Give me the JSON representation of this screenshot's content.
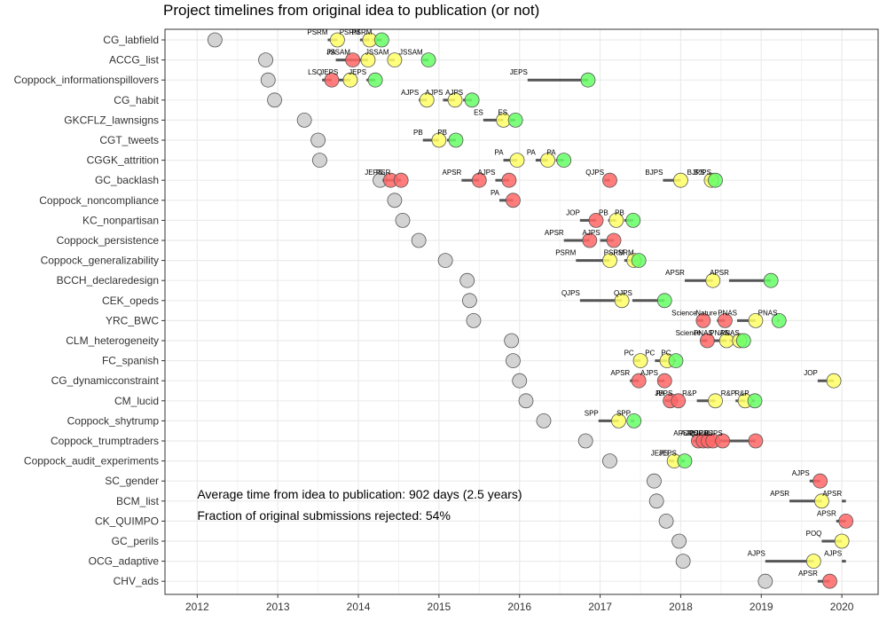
{
  "chart_data": {
    "type": "scatter",
    "title": "Project timelines from original idea to publication (or not)",
    "xlabel": "",
    "ylabel": "",
    "xlim": [
      2011.6,
      2020.45
    ],
    "x_ticks": [
      2012,
      2013,
      2014,
      2015,
      2016,
      2017,
      2018,
      2019,
      2020
    ],
    "grid": true,
    "legend": "none",
    "colors": {
      "idea": "#d3d3d3",
      "rejected": "#ff6666",
      "resubmitted": "#ffff66",
      "published": "#66ff66",
      "segment": "#555555"
    },
    "annotations": [
      "Average time from idea to publication: 902 days (2.5 years)",
      "Fraction of original submissions rejected: 54%"
    ],
    "projects": [
      {
        "name": "CG_labfield",
        "idea": 2012.22,
        "events": [
          {
            "j": "PSRM",
            "s": 2013.62,
            "d": 2013.74,
            "st": "r"
          },
          {
            "j": "PSRM",
            "s": 2014.02,
            "d": 2014.14,
            "st": "r"
          },
          {
            "j": "PSRM",
            "s": 2014.17,
            "d": 2014.29,
            "st": "p"
          }
        ]
      },
      {
        "name": "ACCG_list",
        "idea": 2012.85,
        "events": [
          {
            "j": "PA",
            "s": 2013.72,
            "d": 2013.93,
            "st": "x"
          },
          {
            "j": "JSSAM",
            "s": 2013.9,
            "d": 2014.12,
            "st": "r"
          },
          {
            "j": "JSSAM",
            "s": 2014.38,
            "d": 2014.45,
            "st": "r"
          },
          {
            "j": "JSSAM",
            "s": 2014.8,
            "d": 2014.87,
            "st": "p"
          }
        ]
      },
      {
        "name": "Coppock_informationspillovers",
        "idea": 2012.88,
        "events": [
          {
            "j": "LSQ",
            "s": 2013.55,
            "d": 2013.67,
            "st": "x"
          },
          {
            "j": "JEPS",
            "s": 2013.75,
            "d": 2013.9,
            "st": "r"
          },
          {
            "j": "JEPS",
            "s": 2014.1,
            "d": 2014.21,
            "st": "p"
          },
          {
            "j": "JEPS",
            "s": 2016.1,
            "d": 2016.85,
            "st": "p"
          }
        ]
      },
      {
        "name": "CG_habit",
        "idea": 2012.96,
        "events": [
          {
            "j": "AJPS",
            "s": 2014.75,
            "d": 2014.85,
            "st": "r"
          },
          {
            "j": "AJPS",
            "s": 2015.05,
            "d": 2015.2,
            "st": "r"
          },
          {
            "j": "AJPS",
            "s": 2015.3,
            "d": 2015.41,
            "st": "p"
          }
        ]
      },
      {
        "name": "GKCFLZ_lawnsigns",
        "idea": 2013.33,
        "events": [
          {
            "j": "ES",
            "s": 2015.55,
            "d": 2015.8,
            "st": "r"
          },
          {
            "j": "ES",
            "s": 2015.85,
            "d": 2015.95,
            "st": "p"
          }
        ]
      },
      {
        "name": "CGT_tweets",
        "idea": 2013.5,
        "events": [
          {
            "j": "PB",
            "s": 2014.8,
            "d": 2015.0,
            "st": "r"
          },
          {
            "j": "PB",
            "s": 2015.1,
            "d": 2015.21,
            "st": "p"
          }
        ]
      },
      {
        "name": "CGGK_attrition",
        "idea": 2013.52,
        "events": [
          {
            "j": "PA",
            "s": 2015.8,
            "d": 2015.97,
            "st": "r"
          },
          {
            "j": "PA",
            "s": 2016.2,
            "d": 2016.35,
            "st": "r"
          },
          {
            "j": "PA",
            "s": 2016.45,
            "d": 2016.55,
            "st": "p"
          }
        ]
      },
      {
        "name": "GC_backlash",
        "idea": 2014.27,
        "events": [
          {
            "j": "JEPS",
            "s": 2014.3,
            "d": 2014.4,
            "st": "x"
          },
          {
            "j": "PSR",
            "s": 2014.4,
            "d": 2014.53,
            "st": "x"
          },
          {
            "j": "APSR",
            "s": 2015.28,
            "d": 2015.5,
            "st": "x"
          },
          {
            "j": "AJPS",
            "s": 2015.7,
            "d": 2015.87,
            "st": "x"
          },
          {
            "j": "QJPS",
            "s": 2017.05,
            "d": 2017.12,
            "st": "x"
          },
          {
            "j": "BJPS",
            "s": 2017.78,
            "d": 2018.0,
            "st": "r"
          },
          {
            "j": "BJPS",
            "s": 2018.3,
            "d": 2018.38,
            "st": "r"
          },
          {
            "j": "BJPS",
            "s": 2018.38,
            "d": 2018.43,
            "st": "p"
          }
        ]
      },
      {
        "name": "Coppock_noncompliance",
        "idea": 2014.45,
        "events": [
          {
            "j": "PA",
            "s": 2015.75,
            "d": 2015.92,
            "st": "x"
          }
        ]
      },
      {
        "name": "KC_nonpartisan",
        "idea": 2014.55,
        "events": [
          {
            "j": "JOP",
            "s": 2016.75,
            "d": 2016.95,
            "st": "x"
          },
          {
            "j": "PB",
            "s": 2017.1,
            "d": 2017.2,
            "st": "r"
          },
          {
            "j": "PB",
            "s": 2017.3,
            "d": 2017.41,
            "st": "p"
          }
        ]
      },
      {
        "name": "Coppock_persistence",
        "idea": 2014.75,
        "events": [
          {
            "j": "APSR",
            "s": 2016.55,
            "d": 2016.87,
            "st": "x"
          },
          {
            "j": "AJPS",
            "s": 2017.0,
            "d": 2017.17,
            "st": "x"
          }
        ]
      },
      {
        "name": "Coppock_generalizability",
        "idea": 2015.08,
        "events": [
          {
            "j": "PSRM",
            "s": 2016.7,
            "d": 2017.12,
            "st": "r"
          },
          {
            "j": "PSRM",
            "s": 2017.3,
            "d": 2017.42,
            "st": "r"
          },
          {
            "j": "PSRM",
            "s": 2017.42,
            "d": 2017.48,
            "st": "p"
          }
        ]
      },
      {
        "name": "BCCH_declaredesign",
        "idea": 2015.35,
        "events": [
          {
            "j": "APSR",
            "s": 2018.05,
            "d": 2018.4,
            "st": "r"
          },
          {
            "j": "APSR",
            "s": 2018.6,
            "d": 2019.12,
            "st": "p"
          }
        ]
      },
      {
        "name": "CEK_opeds",
        "idea": 2015.38,
        "events": [
          {
            "j": "QJPS",
            "s": 2016.75,
            "d": 2017.27,
            "st": "r"
          },
          {
            "j": "QJPS",
            "s": 2017.4,
            "d": 2017.8,
            "st": "p"
          }
        ]
      },
      {
        "name": "YRC_BWC",
        "idea": 2015.43,
        "events": [
          {
            "j": "Science",
            "s": 2018.2,
            "d": 2018.28,
            "st": "x"
          },
          {
            "j": "Nature",
            "s": 2018.45,
            "d": 2018.55,
            "st": "x"
          },
          {
            "j": "PNAS",
            "s": 2018.7,
            "d": 2018.93,
            "st": "r"
          },
          {
            "j": "PNAS",
            "s": 2019.2,
            "d": 2019.22,
            "st": "p"
          }
        ]
      },
      {
        "name": "CLM_heterogeneity",
        "idea": 2015.9,
        "events": [
          {
            "j": "Science",
            "s": 2018.25,
            "d": 2018.33,
            "st": "x"
          },
          {
            "j": "PNAS",
            "s": 2018.4,
            "d": 2018.57,
            "st": "r"
          },
          {
            "j": "PNAS",
            "s": 2018.6,
            "d": 2018.73,
            "st": "r"
          },
          {
            "j": "PNAS",
            "s": 2018.73,
            "d": 2018.78,
            "st": "p"
          }
        ]
      },
      {
        "name": "FC_spanish",
        "idea": 2015.92,
        "events": [
          {
            "j": "PC",
            "s": 2017.42,
            "d": 2017.5,
            "st": "r"
          },
          {
            "j": "PC",
            "s": 2017.68,
            "d": 2017.83,
            "st": "r"
          },
          {
            "j": "PC",
            "s": 2017.88,
            "d": 2017.94,
            "st": "p"
          }
        ]
      },
      {
        "name": "CG_dynamicconstraint",
        "idea": 2016.0,
        "events": [
          {
            "j": "APSR",
            "s": 2017.37,
            "d": 2017.48,
            "st": "x"
          },
          {
            "j": "AJPS",
            "s": 2017.72,
            "d": 2017.8,
            "st": "x"
          },
          {
            "j": "JOP",
            "s": 2019.7,
            "d": 2019.9,
            "st": "r"
          }
        ]
      },
      {
        "name": "CM_lucid",
        "idea": 2016.08,
        "events": [
          {
            "j": "PA",
            "s": 2017.8,
            "d": 2017.87,
            "st": "x"
          },
          {
            "j": "JEPS",
            "s": 2017.9,
            "d": 2017.97,
            "st": "x"
          },
          {
            "j": "R&P",
            "s": 2018.2,
            "d": 2018.43,
            "st": "r"
          },
          {
            "j": "R&P",
            "s": 2018.68,
            "d": 2018.8,
            "st": "r"
          },
          {
            "j": "R&P",
            "s": 2018.85,
            "d": 2018.92,
            "st": "p"
          }
        ]
      },
      {
        "name": "Coppock_shytrump",
        "idea": 2016.3,
        "events": [
          {
            "j": "SPP",
            "s": 2016.98,
            "d": 2017.23,
            "st": "r"
          },
          {
            "j": "SPP",
            "s": 2017.38,
            "d": 2017.42,
            "st": "p"
          }
        ]
      },
      {
        "name": "Coppock_trumptraders",
        "idea": 2016.82,
        "events": [
          {
            "j": "APSR",
            "s": 2018.15,
            "d": 2018.22,
            "st": "x"
          },
          {
            "j": "AJPS",
            "s": 2018.22,
            "d": 2018.28,
            "st": "x"
          },
          {
            "j": "JOP",
            "s": 2018.28,
            "d": 2018.34,
            "st": "x"
          },
          {
            "j": "QJPS",
            "s": 2018.34,
            "d": 2018.4,
            "st": "x"
          },
          {
            "j": "JEPS",
            "s": 2018.4,
            "d": 2018.52,
            "st": "x"
          },
          {
            "j": "BJPS",
            "s": 2018.52,
            "d": 2018.93,
            "st": "x"
          }
        ]
      },
      {
        "name": "Coppock_audit_experiments",
        "idea": 2017.12,
        "events": [
          {
            "j": "JEPS",
            "s": 2017.85,
            "d": 2017.92,
            "st": "r"
          },
          {
            "j": "JEPS",
            "s": 2017.95,
            "d": 2018.05,
            "st": "p"
          }
        ]
      },
      {
        "name": "SC_gender",
        "idea": 2017.67,
        "events": [
          {
            "j": "AJPS",
            "s": 2019.6,
            "d": 2019.73,
            "st": "x"
          }
        ]
      },
      {
        "name": "BCM_list",
        "idea": 2017.7,
        "events": [
          {
            "j": "APSR",
            "s": 2019.35,
            "d": 2019.75,
            "st": "r"
          },
          {
            "j": "APSR",
            "s": 2020.0,
            "d": 2020.05,
            "st": "none"
          }
        ]
      },
      {
        "name": "CK_QUIMPO",
        "idea": 2017.82,
        "events": [
          {
            "j": "APSR",
            "s": 2019.93,
            "d": 2020.05,
            "st": "x"
          }
        ]
      },
      {
        "name": "GC_perils",
        "idea": 2017.98,
        "events": [
          {
            "j": "POQ",
            "s": 2019.75,
            "d": 2020.0,
            "st": "r"
          }
        ]
      },
      {
        "name": "OCG_adaptive",
        "idea": 2018.03,
        "events": [
          {
            "j": "AJPS",
            "s": 2019.05,
            "d": 2019.65,
            "st": "r"
          },
          {
            "j": "AJPS",
            "s": 2020.0,
            "d": 2020.05,
            "st": "none"
          }
        ]
      },
      {
        "name": "CHV_ads",
        "idea": 2019.05,
        "events": [
          {
            "j": "APSR",
            "s": 2019.7,
            "d": 2019.85,
            "st": "x"
          }
        ]
      }
    ]
  }
}
